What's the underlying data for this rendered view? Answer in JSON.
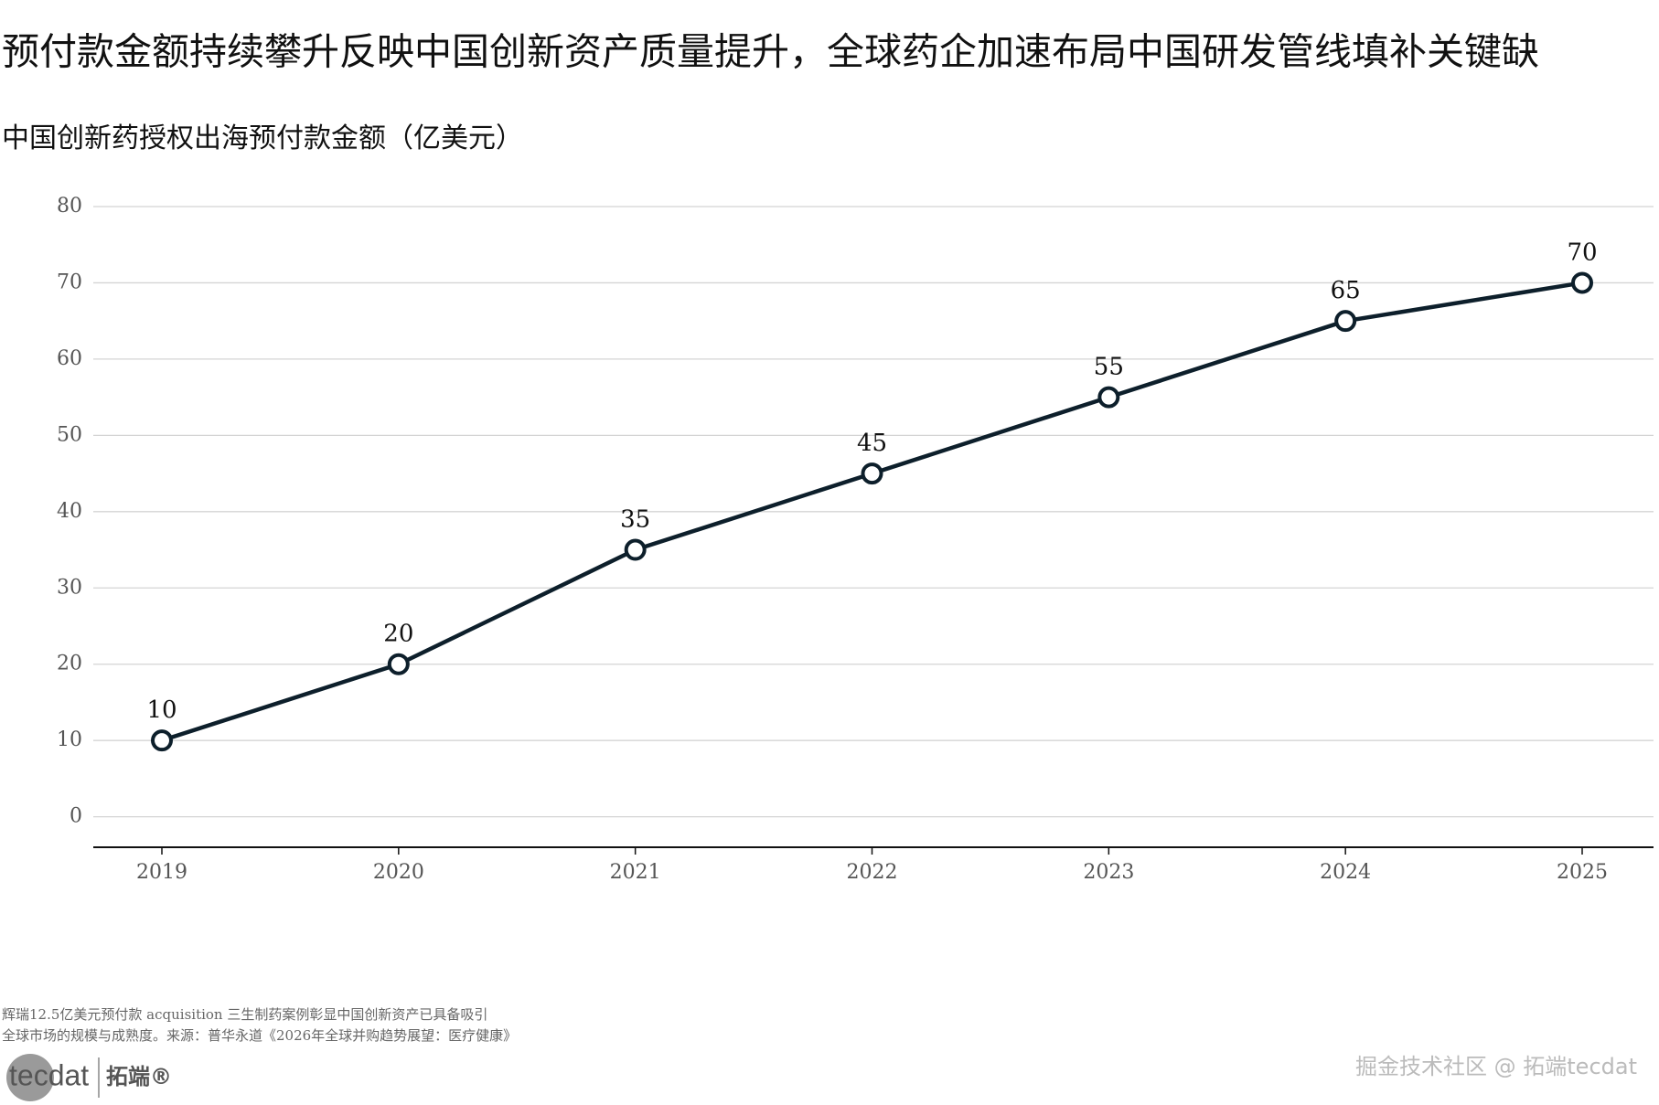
{
  "chart_data": {
    "type": "line",
    "title": "预付款金额持续攀升反映中国创新资产质量提升，全球药企加速布局中国研发管线填补关键缺",
    "subtitle": "中国创新药授权出海预付款金额（亿美元）",
    "categories": [
      "2019",
      "2020",
      "2021",
      "2022",
      "2023",
      "2024",
      "2025"
    ],
    "values": [
      10,
      20,
      35,
      45,
      55,
      65,
      70
    ],
    "color": "#0d1f2b",
    "ylim": [
      -4,
      80
    ],
    "yticks": [
      0,
      10,
      20,
      30,
      40,
      50,
      60,
      70,
      80
    ],
    "grid": true
  },
  "footnote": [
    "辉瑞12.5亿美元预付款 acquisition 三生制药案例彰显中国创新资产已具备吸引",
    "全球市场的规模与成熟度。来源：普华永道《2026年全球并购趋势展望：医疗健康》"
  ],
  "logo": {
    "brand": "tecdat",
    "name": "拓端®"
  },
  "watermark": "掘金技术社区 @ 拓端tecdat"
}
